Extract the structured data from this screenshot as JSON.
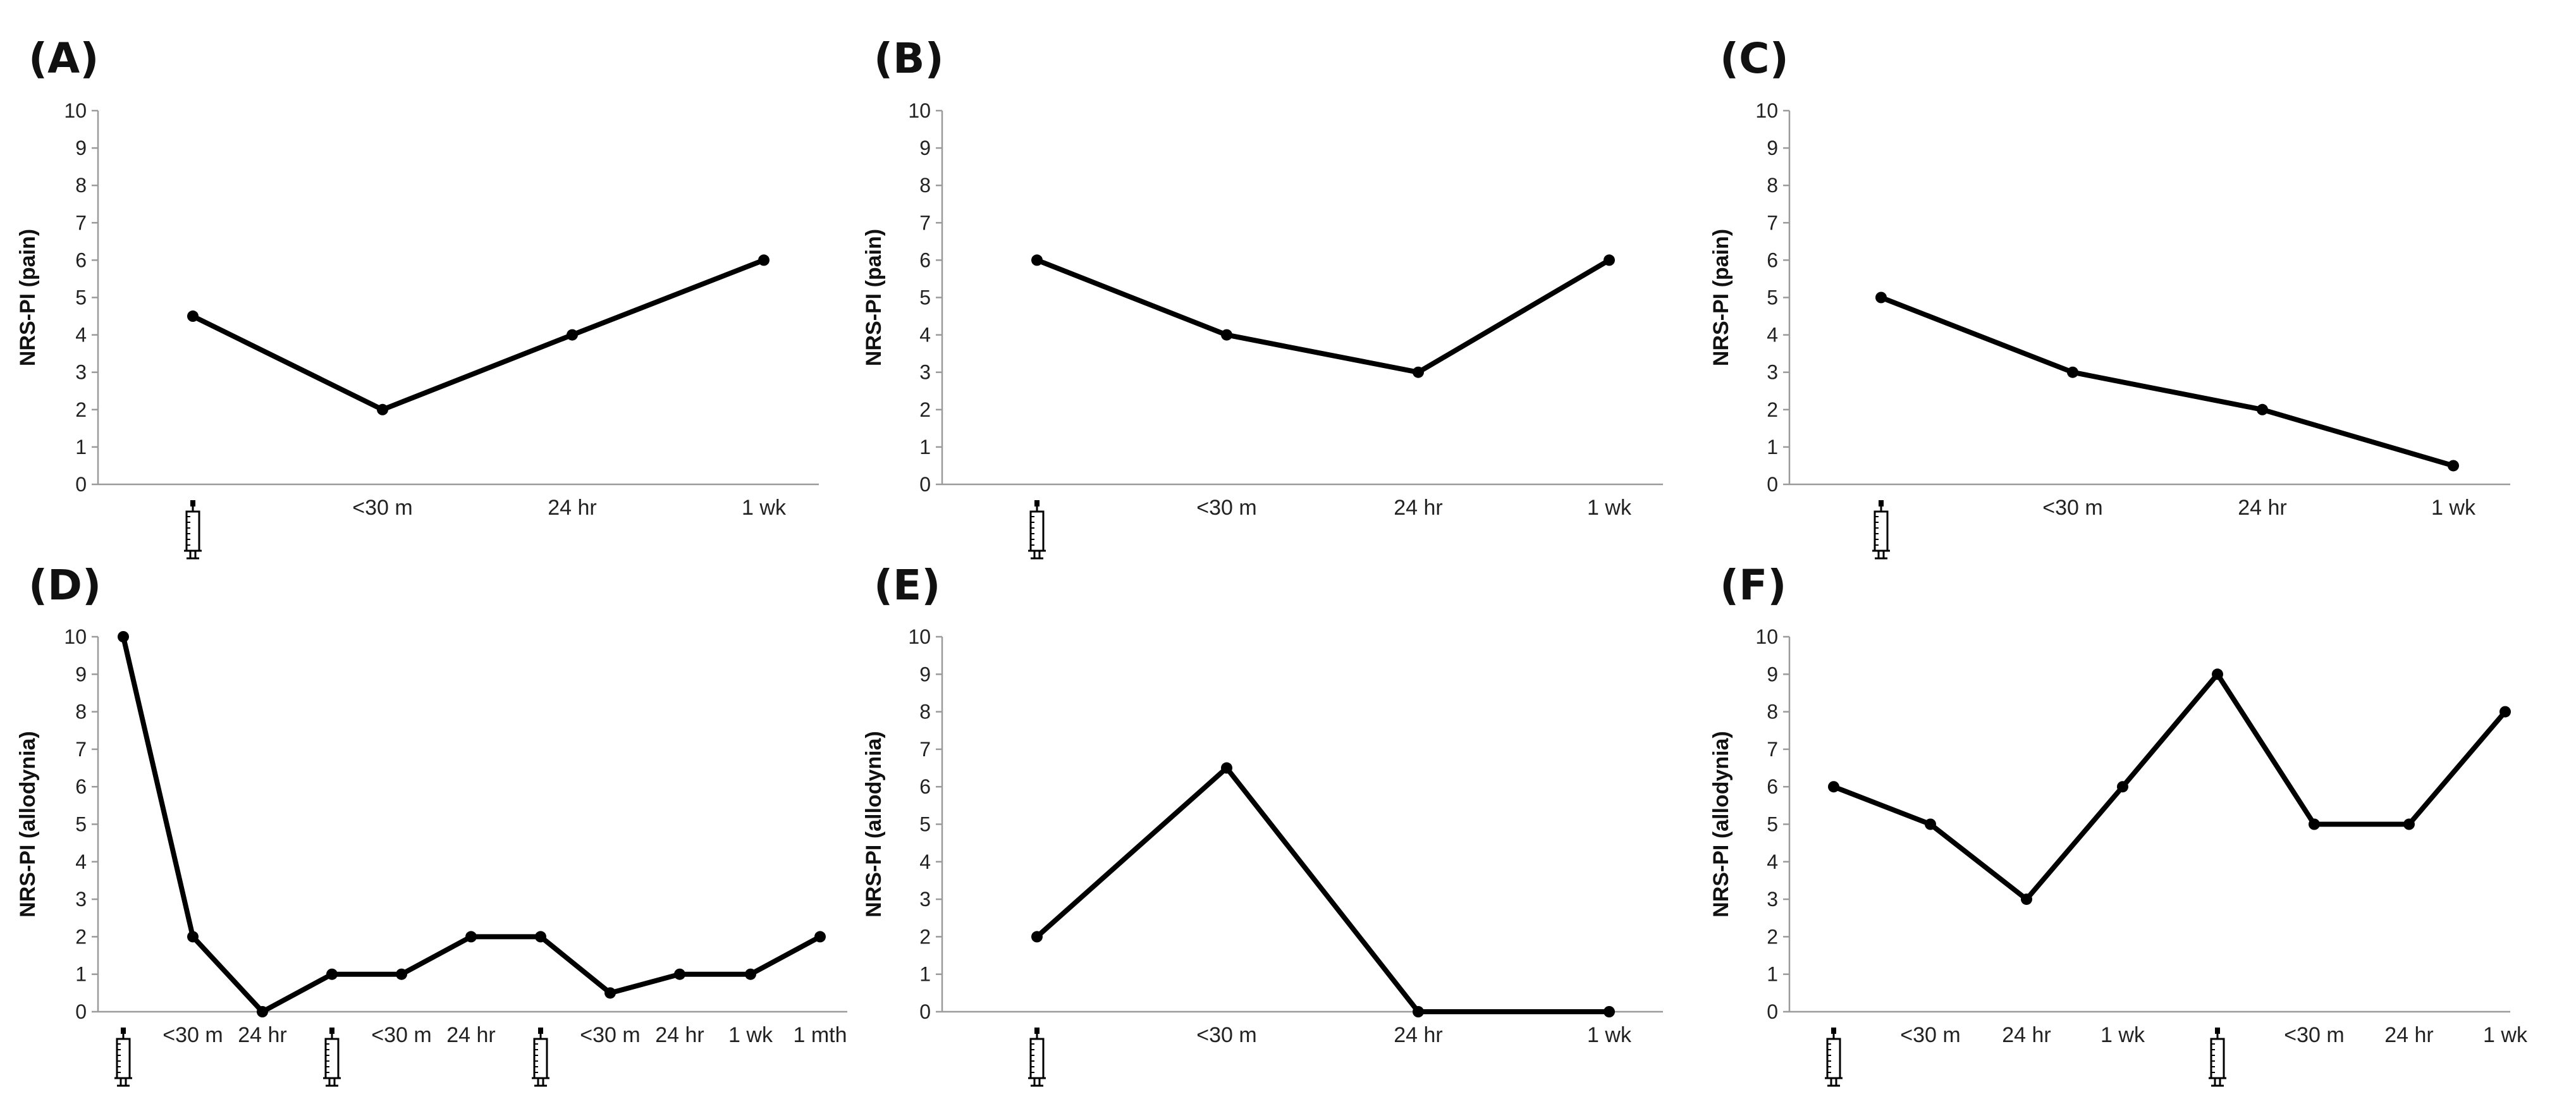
{
  "chart_data": [
    {
      "panel": "(A)",
      "type": "line",
      "ylabel": "NRS-PI (pain)",
      "ylim": [
        0,
        10
      ],
      "yticks": [
        "0",
        "1",
        "2",
        "3",
        "4",
        "5",
        "6",
        "7",
        "8",
        "9",
        "10"
      ],
      "categories": [
        "syringe",
        "<30 m",
        "24 hr",
        "1 wk"
      ],
      "values": [
        4.5,
        2,
        4,
        6
      ]
    },
    {
      "panel": "(B)",
      "type": "line",
      "ylabel": "NRS-PI (pain)",
      "ylim": [
        0,
        10
      ],
      "yticks": [
        "0",
        "1",
        "2",
        "3",
        "4",
        "5",
        "6",
        "7",
        "8",
        "9",
        "10"
      ],
      "categories": [
        "syringe",
        "<30 m",
        "24 hr",
        "1 wk"
      ],
      "values": [
        6,
        4,
        3,
        6
      ]
    },
    {
      "panel": "(C)",
      "type": "line",
      "ylabel": "NRS-PI (pain)",
      "ylim": [
        0,
        10
      ],
      "yticks": [
        "0",
        "1",
        "2",
        "3",
        "4",
        "5",
        "6",
        "7",
        "8",
        "9",
        "10"
      ],
      "categories": [
        "syringe",
        "<30 m",
        "24 hr",
        "1 wk"
      ],
      "values": [
        5,
        3,
        2,
        0.5
      ]
    },
    {
      "panel": "(D)",
      "type": "line",
      "ylabel": "NRS-PI (allodynia)",
      "ylim": [
        0,
        10
      ],
      "yticks": [
        "0",
        "1",
        "2",
        "3",
        "4",
        "5",
        "6",
        "7",
        "8",
        "9",
        "10"
      ],
      "categories": [
        "syringe",
        "<30 m",
        "24 hr",
        "syringe",
        "<30 m",
        "24 hr",
        "syringe",
        "<30 m",
        "24 hr",
        "1 wk",
        "1 mth"
      ],
      "values": [
        10,
        2,
        0,
        1,
        1,
        2,
        2,
        0.5,
        1,
        1,
        2
      ],
      "marker_offset": 0
    },
    {
      "panel": "(E)",
      "type": "line",
      "ylabel": "NRS-PI (allodynia)",
      "ylim": [
        0,
        10
      ],
      "yticks": [
        "0",
        "1",
        "2",
        "3",
        "4",
        "5",
        "6",
        "7",
        "8",
        "9",
        "10"
      ],
      "categories": [
        "syringe",
        "<30 m",
        "24 hr",
        "1 wk"
      ],
      "values": [
        2,
        6.5,
        0,
        0
      ]
    },
    {
      "panel": "(F)",
      "type": "line",
      "ylabel": "NRS-PI (allodynia)",
      "ylim": [
        0,
        10
      ],
      "yticks": [
        "0",
        "1",
        "2",
        "3",
        "4",
        "5",
        "6",
        "7",
        "8",
        "9",
        "10"
      ],
      "categories": [
        "syringe",
        "<30 m",
        "24 hr",
        "1 wk",
        "syringe",
        "<30 m",
        "24 hr",
        "1 wk"
      ],
      "values": [
        6,
        5,
        3,
        6,
        9,
        5,
        5,
        8
      ]
    }
  ]
}
